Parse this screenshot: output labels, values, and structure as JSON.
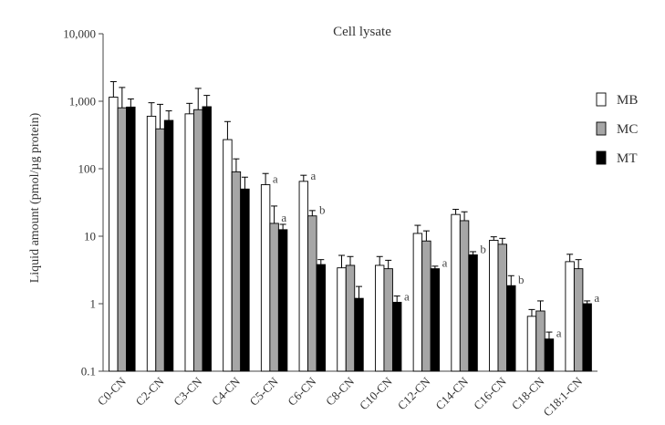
{
  "chart_data": {
    "type": "bar",
    "title": "Cell lysate",
    "ylabel": "Liquid amount (pmol/µg protein)",
    "xlabel": "",
    "yscale": "log",
    "ylim": [
      0.1,
      10000
    ],
    "yticks": [
      {
        "value": 0.1,
        "label": "0.1"
      },
      {
        "value": 1,
        "label": "1"
      },
      {
        "value": 10,
        "label": "10"
      },
      {
        "value": 100,
        "label": "100"
      },
      {
        "value": 1000,
        "label": "1,000"
      },
      {
        "value": 10000,
        "label": "10,000"
      }
    ],
    "categories": [
      "C0-CN",
      "C2-CN",
      "C3-CN",
      "C4-CN",
      "C5-CN",
      "C6-CN",
      "C8-CN",
      "C10-CN",
      "C12-CN",
      "C14-CN",
      "C16-CN",
      "C18-CN",
      "C18:1-CN"
    ],
    "legend_position": "right",
    "series": [
      {
        "name": "MB",
        "color": "#ffffff",
        "values": [
          1150,
          600,
          650,
          270,
          58,
          65,
          3.4,
          3.7,
          11,
          21,
          8.7,
          0.65,
          4.2
        ],
        "err_upper": [
          1950,
          950,
          930,
          500,
          85,
          80,
          5.2,
          5.0,
          14.5,
          25,
          9.8,
          0.82,
          5.4
        ]
      },
      {
        "name": "MC",
        "color": "#a6a6a6",
        "values": [
          800,
          390,
          750,
          90,
          15.5,
          20,
          3.7,
          3.3,
          8.5,
          17,
          7.6,
          0.78,
          3.3
        ],
        "err_upper": [
          1600,
          900,
          1550,
          140,
          28,
          24,
          5.0,
          4.4,
          12,
          23,
          9.3,
          1.1,
          4.5
        ]
      },
      {
        "name": "MT",
        "color": "#000000",
        "values": [
          820,
          520,
          830,
          50,
          12.5,
          3.8,
          1.2,
          1.05,
          3.3,
          5.3,
          1.85,
          0.3,
          1.0
        ],
        "err_upper": [
          1080,
          720,
          1220,
          75,
          15,
          4.5,
          1.8,
          1.3,
          3.6,
          5.9,
          2.6,
          0.38,
          1.1
        ]
      }
    ],
    "annotations": [
      {
        "category": "C5-CN",
        "series": "MB",
        "text": "a"
      },
      {
        "category": "C5-CN",
        "series": "MC",
        "text": "a"
      },
      {
        "category": "C6-CN",
        "series": "MB",
        "text": "a"
      },
      {
        "category": "C6-CN",
        "series": "MC",
        "text": "b"
      },
      {
        "category": "C10-CN",
        "series": "MT",
        "text": "a"
      },
      {
        "category": "C12-CN",
        "series": "MT",
        "text": "a"
      },
      {
        "category": "C14-CN",
        "series": "MT",
        "text": "b"
      },
      {
        "category": "C16-CN",
        "series": "MT",
        "text": "b"
      },
      {
        "category": "C18-CN",
        "series": "MT",
        "text": "a"
      },
      {
        "category": "C18:1-CN",
        "series": "MT",
        "text": "a"
      }
    ]
  }
}
